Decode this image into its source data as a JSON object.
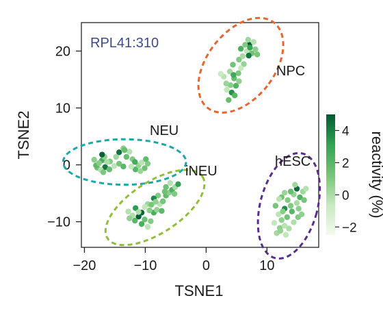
{
  "chart_data": {
    "type": "scatter",
    "title": "RPL41:310",
    "title_color": "#3f4a8a",
    "xlabel": "TSNE1",
    "ylabel": "TSNE2",
    "xlim": [
      -20.5,
      18.5
    ],
    "ylim": [
      -14.5,
      25
    ],
    "xticks": [
      -20,
      -10,
      0,
      10
    ],
    "xtick_labels": [
      "−20",
      "−10",
      "0",
      "10"
    ],
    "yticks": [
      -10,
      0,
      10,
      20
    ],
    "ytick_labels": [
      "−10",
      "0",
      "10",
      "20"
    ],
    "grid": false,
    "colorbar": {
      "label": "reactivity (%)",
      "min": -2.5,
      "max": 5,
      "ticks": [
        4,
        2,
        0,
        -2
      ],
      "tick_labels": [
        "4",
        "2",
        "0",
        "−2"
      ],
      "colors": [
        "#f3faef",
        "#c7e9c0",
        "#74c476",
        "#31a354",
        "#005a32"
      ]
    },
    "clusters": [
      {
        "name": "NPC",
        "color": "#e8662e",
        "ellipse": {
          "cx": 5.7,
          "cy": 17.5,
          "rx": 5.5,
          "ry": 9.5,
          "angle": 38
        },
        "points": [
          [
            4.0,
            14.0
          ],
          [
            4.6,
            15.2
          ],
          [
            3.4,
            13.2
          ],
          [
            4.9,
            13.9
          ],
          [
            3.9,
            16.4
          ],
          [
            2.9,
            15.5
          ],
          [
            5.3,
            16.1
          ],
          [
            4.2,
            12.7
          ],
          [
            3.7,
            11.4
          ],
          [
            5.4,
            14.7
          ],
          [
            2.4,
            16.0
          ],
          [
            4.4,
            17.6
          ],
          [
            3.3,
            14.3
          ],
          [
            4.7,
            12.2
          ],
          [
            5.4,
            18.5
          ],
          [
            6.0,
            19.1
          ],
          [
            5.7,
            20.4
          ],
          [
            6.7,
            20.0
          ],
          [
            7.1,
            21.1
          ],
          [
            7.5,
            19.6
          ],
          [
            8.1,
            20.3
          ],
          [
            7.0,
            19.2
          ],
          [
            6.4,
            21.1
          ],
          [
            7.8,
            21.6
          ],
          [
            8.4,
            19.4
          ],
          [
            6.2,
            17.7
          ],
          [
            5.7,
            17.0
          ],
          [
            7.2,
            20.6
          ],
          [
            6.9,
            22.0
          ],
          [
            4.5,
            15.8
          ]
        ],
        "values": [
          0.8,
          1.6,
          -0.5,
          2.2,
          0.2,
          -0.3,
          1.1,
          3.6,
          1.6,
          0.6,
          -0.8,
          1.3,
          0.4,
          2.0,
          1.0,
          0.1,
          2.4,
          -0.4,
          4.9,
          1.4,
          0.7,
          4.3,
          0.9,
          -0.2,
          1.2,
          0.5,
          -0.6,
          3.0,
          0.3,
          2.7
        ]
      },
      {
        "name": "NEU",
        "color": "#1aa8a8",
        "ellipse": {
          "cx": -13.4,
          "cy": 0.5,
          "rx": 10.1,
          "ry": 4.0,
          "angle": 0
        },
        "points": [
          [
            -18.4,
            0.9
          ],
          [
            -17.9,
            -0.5
          ],
          [
            -17.1,
            0.8
          ],
          [
            -16.6,
            -0.4
          ],
          [
            -15.9,
            -0.8
          ],
          [
            -16.7,
            1.4
          ],
          [
            -17.3,
            -0.9
          ],
          [
            -18.1,
            -0.1
          ],
          [
            -17.1,
            1.8
          ],
          [
            -15.8,
            0.6
          ],
          [
            -15.1,
            -0.2
          ],
          [
            -14.3,
            0.2
          ],
          [
            -13.6,
            -0.3
          ],
          [
            -14.3,
            2.2
          ],
          [
            -13.6,
            2.9
          ],
          [
            -13.1,
            1.4
          ],
          [
            -12.6,
            2.3
          ],
          [
            -12.1,
            1.0
          ],
          [
            -11.6,
            -0.8
          ],
          [
            -11.1,
            -0.1
          ],
          [
            -10.6,
            0.4
          ],
          [
            -10.1,
            -0.6
          ],
          [
            -9.6,
            0.2
          ],
          [
            -9.9,
            1.0
          ],
          [
            -10.8,
            -1.1
          ],
          [
            -11.7,
            0.5
          ],
          [
            -16.3,
            0.5
          ],
          [
            -16.9,
            -1.3
          ],
          [
            -14.8,
            1.4
          ],
          [
            -17.6,
            0.3
          ],
          [
            -13.4,
            2.6
          ],
          [
            -12.3,
            -0.3
          ]
        ],
        "values": [
          0.7,
          1.3,
          2.5,
          4.3,
          1.6,
          0.6,
          -0.1,
          1.9,
          4.8,
          0.9,
          -0.4,
          1.2,
          2.0,
          4.4,
          0.8,
          1.7,
          -0.2,
          1.0,
          2.1,
          0.5,
          -0.3,
          1.4,
          0.9,
          1.8,
          0.4,
          2.6,
          0.0,
          1.1,
          0.3,
          0.8,
          1.6,
          -0.5
        ]
      },
      {
        "name": "iNEU",
        "color": "#8fbf3a",
        "ellipse": {
          "cx": -8.4,
          "cy": -7.5,
          "rx": 9.3,
          "ry": 4.5,
          "angle": -33
        },
        "points": [
          [
            -10.6,
            -8.4
          ],
          [
            -11.1,
            -9.1
          ],
          [
            -10.1,
            -9.6
          ],
          [
            -11.6,
            -7.6
          ],
          [
            -12.1,
            -8.9
          ],
          [
            -12.6,
            -9.4
          ],
          [
            -10.6,
            -10.4
          ],
          [
            -9.6,
            -10.9
          ],
          [
            -9.1,
            -9.9
          ],
          [
            -8.6,
            -8.4
          ],
          [
            -8.1,
            -7.9
          ],
          [
            -7.6,
            -6.9
          ],
          [
            -7.1,
            -6.4
          ],
          [
            -6.6,
            -5.4
          ],
          [
            -6.1,
            -4.9
          ],
          [
            -5.6,
            -4.4
          ],
          [
            -5.1,
            -3.9
          ],
          [
            -4.6,
            -3.4
          ],
          [
            -5.9,
            -3.2
          ],
          [
            -6.6,
            -3.9
          ],
          [
            -7.9,
            -5.4
          ],
          [
            -8.6,
            -5.9
          ],
          [
            -9.6,
            -6.9
          ],
          [
            -10.1,
            -7.4
          ],
          [
            -9.3,
            -8.0
          ],
          [
            -9.0,
            -7.0
          ],
          [
            -11.1,
            -8.3
          ],
          [
            -7.3,
            -8.1
          ],
          [
            -8.3,
            -6.5
          ],
          [
            -6.8,
            -4.7
          ],
          [
            -12.8,
            -8.2
          ],
          [
            -11.7,
            -9.8
          ],
          [
            -5.2,
            -5.1
          ]
        ],
        "values": [
          4.7,
          4.9,
          1.5,
          3.3,
          -0.1,
          0.6,
          2.4,
          -0.4,
          0.9,
          2.5,
          0.5,
          -0.3,
          1.2,
          1.8,
          0.7,
          2.3,
          0.1,
          3.2,
          -0.2,
          1.5,
          0.9,
          3.8,
          0.3,
          -0.5,
          0.7,
          1.2,
          0.0,
          1.9,
          0.6,
          1.4,
          -0.2,
          2.0,
          1.0
        ]
      },
      {
        "name": "hESC",
        "color": "#5a2d8c",
        "ellipse": {
          "cx": 13.6,
          "cy": -7.2,
          "rx": 4.7,
          "ry": 9.5,
          "angle": 15
        },
        "points": [
          [
            11.6,
            -12.0
          ],
          [
            12.1,
            -11.1
          ],
          [
            12.9,
            -10.7
          ],
          [
            11.2,
            -10.2
          ],
          [
            12.4,
            -9.7
          ],
          [
            13.3,
            -9.2
          ],
          [
            11.9,
            -8.7
          ],
          [
            14.1,
            -8.2
          ],
          [
            12.9,
            -7.7
          ],
          [
            13.9,
            -7.2
          ],
          [
            14.9,
            -6.7
          ],
          [
            13.4,
            -6.2
          ],
          [
            12.4,
            -5.7
          ],
          [
            14.4,
            -5.2
          ],
          [
            15.4,
            -5.7
          ],
          [
            15.9,
            -4.7
          ],
          [
            16.4,
            -4.2
          ],
          [
            14.9,
            -4.2
          ],
          [
            13.9,
            -4.7
          ],
          [
            12.9,
            -4.9
          ],
          [
            15.2,
            -7.7
          ],
          [
            16.1,
            -6.2
          ],
          [
            13.1,
            -12.3
          ],
          [
            12.2,
            -11.6
          ],
          [
            14.4,
            -10.1
          ],
          [
            15.1,
            -9.2
          ],
          [
            11.4,
            -7.2
          ],
          [
            13.6,
            -11.2
          ],
          [
            12.6,
            -8.2
          ],
          [
            15.7,
            -8.7
          ],
          [
            12.0,
            -6.0
          ],
          [
            14.6,
            -3.5
          ]
        ],
        "values": [
          0.2,
          0.7,
          -0.3,
          -0.5,
          0.6,
          1.3,
          -0.4,
          2.0,
          3.7,
          1.0,
          0.1,
          0.9,
          1.3,
          0.5,
          2.3,
          0.3,
          -0.2,
          4.6,
          1.6,
          0.4,
          0.7,
          1.2,
          -0.5,
          0.5,
          -0.1,
          0.9,
          1.2,
          0.0,
          0.8,
          0.6,
          -0.3,
          0.3
        ]
      }
    ]
  }
}
